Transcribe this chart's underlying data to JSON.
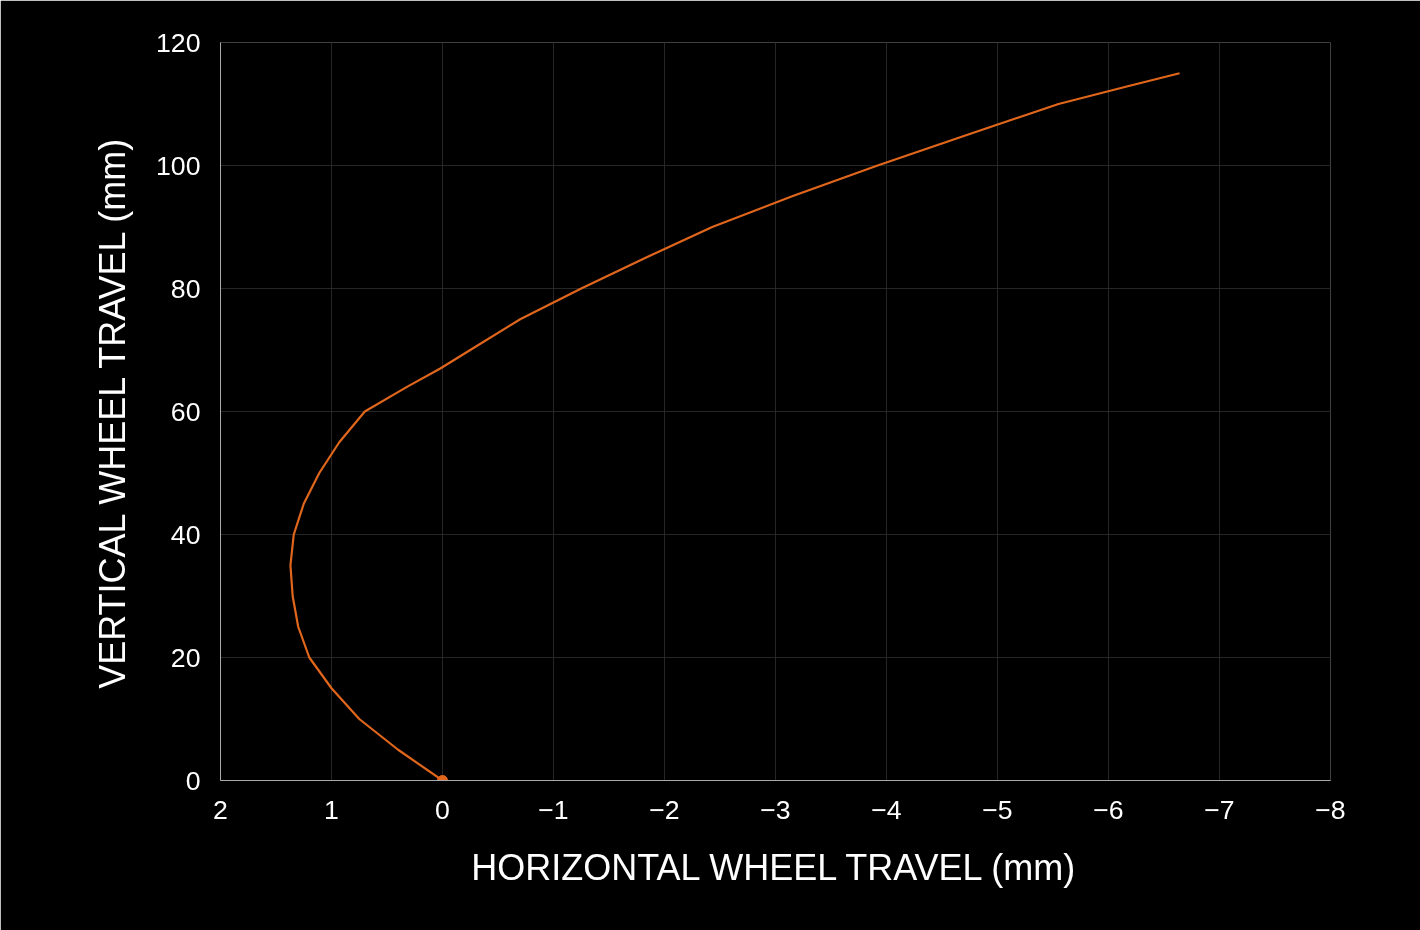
{
  "chart_data": {
    "type": "line",
    "xlabel": "HORIZONTAL WHEEL TRAVEL (mm)",
    "ylabel": "VERTICAL WHEEL TRAVEL (mm)",
    "series": [
      {
        "color": "#e0661c",
        "x": [
          0,
          0.4,
          0.75,
          1.0,
          1.2,
          1.3,
          1.35,
          1.37,
          1.34,
          1.25,
          1.11,
          0.93,
          0.7,
          0.32,
          0.02,
          -0.25,
          -0.7,
          -1.25,
          -1.83,
          -2.43,
          -3.15,
          -3.92,
          -4.73,
          -5.55,
          -6.2,
          -6.64
        ],
        "values": [
          0,
          5,
          10,
          15,
          20,
          25,
          30,
          35,
          40,
          45,
          50,
          55,
          60,
          64,
          67,
          70,
          75,
          80,
          85,
          90,
          95,
          100,
          105,
          110,
          113,
          115
        ]
      },
      {
        "type": "scatter",
        "color": "#e0661c",
        "marker": "circle",
        "x": [
          0
        ],
        "values": [
          0
        ]
      }
    ],
    "xlim": [
      2,
      -8
    ],
    "xticks": [
      2,
      1,
      0,
      -1,
      -2,
      -3,
      -4,
      -5,
      -6,
      -7,
      -8
    ],
    "ylim": [
      0,
      120
    ],
    "yticks": [
      0,
      20,
      40,
      60,
      80,
      100,
      120
    ],
    "grid": true
  }
}
